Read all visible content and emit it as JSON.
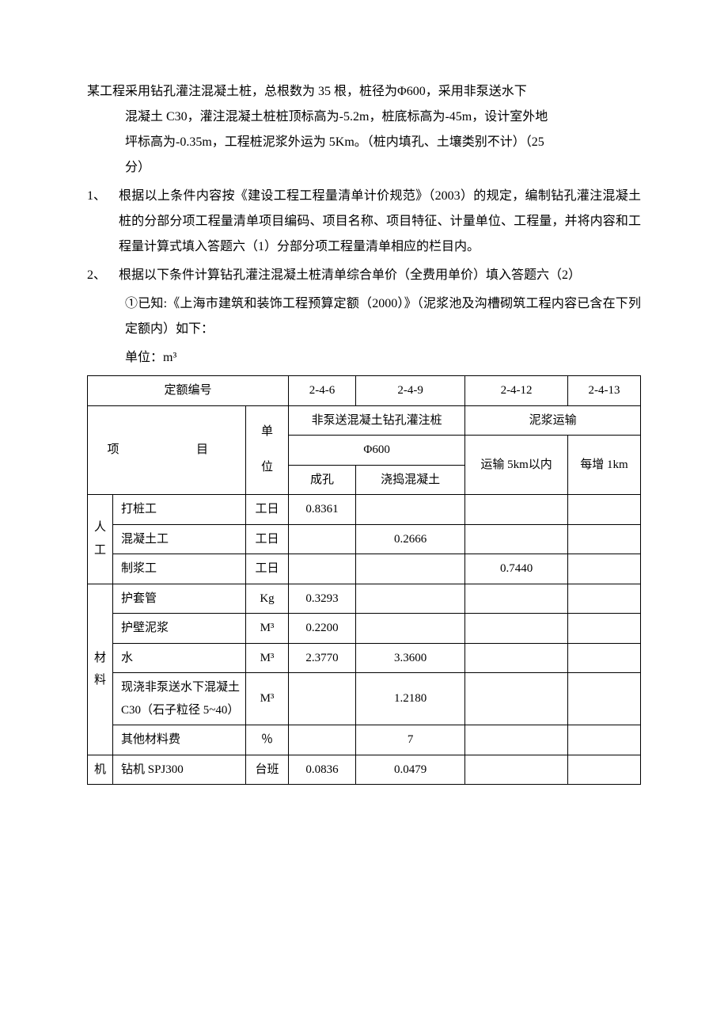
{
  "intro": {
    "line1": "某工程采用钻孔灌注混凝土桩，总根数为 35 根，桩径为Φ600，采用非泵送水下",
    "line2": "混凝土 C30，灌注混凝土桩桩顶标高为-5.2m，桩底标高为-45m，设计室外地",
    "line3": "坪标高为-0.35m，工程桩泥浆外运为 5Km。（桩内填孔、土壤类别不计）（25",
    "line4": "分）"
  },
  "item1": {
    "num": "1、",
    "text": "根据以上条件内容按《建设工程工程量清单计价规范》（2003）的规定，编制钻孔灌注混凝土桩的分部分项工程量清单项目编码、项目名称、项目特征、计量单位、工程量，并将内容和工程量计算式填入答题六（1）分部分项工程量清单相应的栏目内。"
  },
  "item2": {
    "num": "2、",
    "text": "根据以下条件计算钻孔灌注混凝土桩清单综合单价（全费用单价）填入答题六（2）",
    "sub1": "①已知:《上海市建筑和装饰工程预算定额（2000）》（泥浆池及沟槽砌筑工程内容已含在下列定额内）如下：",
    "unit": "单位：m³"
  },
  "table": {
    "header": {
      "quota_code_label": "定额编号",
      "codes": [
        "2-4-6",
        "2-4-9",
        "2-4-12",
        "2-4-13"
      ],
      "project_label": "项  目",
      "unit_label": "单位",
      "group1_label": "非泵送混凝土钻孔灌注桩",
      "group2_label": "泥浆运输",
      "phi_label": "Φ600",
      "col1": "成孔",
      "col2": "浇捣混凝土",
      "col3": "运输 5km以内",
      "col4": "每增 1km"
    },
    "categories": {
      "labor": "人工",
      "material": "材料",
      "machine": "机"
    },
    "rows": [
      {
        "cat": "labor",
        "catspan": 3,
        "name": "打桩工",
        "unit": "工日",
        "v": [
          "0.8361",
          "",
          "",
          ""
        ]
      },
      {
        "cat": "",
        "name": "混凝土工",
        "unit": "工日",
        "v": [
          "",
          "0.2666",
          "",
          ""
        ]
      },
      {
        "cat": "",
        "name": "制浆工",
        "unit": "工日",
        "v": [
          "",
          "",
          "0.7440",
          ""
        ]
      },
      {
        "cat": "material",
        "catspan": 5,
        "name": "护套管",
        "unit": "Kg",
        "v": [
          "0.3293",
          "",
          "",
          ""
        ]
      },
      {
        "cat": "",
        "name": "护壁泥浆",
        "unit": "M³",
        "v": [
          "0.2200",
          "",
          "",
          ""
        ]
      },
      {
        "cat": "",
        "name": "水",
        "unit": "M³",
        "v": [
          "2.3770",
          "3.3600",
          "",
          ""
        ]
      },
      {
        "cat": "",
        "name": "现浇非泵送水下混凝土C30（石子粒径 5~40）",
        "unit": "M³",
        "v": [
          "",
          "1.2180",
          "",
          ""
        ]
      },
      {
        "cat": "",
        "name": "其他材料费",
        "unit": "％",
        "v": [
          "",
          "7",
          "",
          ""
        ]
      },
      {
        "cat": "machine",
        "catspan": 1,
        "name": "钻机 SPJ300",
        "unit": "台班",
        "v": [
          "0.0836",
          "0.0479",
          "",
          ""
        ]
      }
    ],
    "col_widths": {
      "cat": "32px",
      "name": "168px",
      "unit": "54px",
      "val": "auto"
    },
    "border_color": "#000000",
    "background_color": "#ffffff",
    "fontsize": 15
  }
}
